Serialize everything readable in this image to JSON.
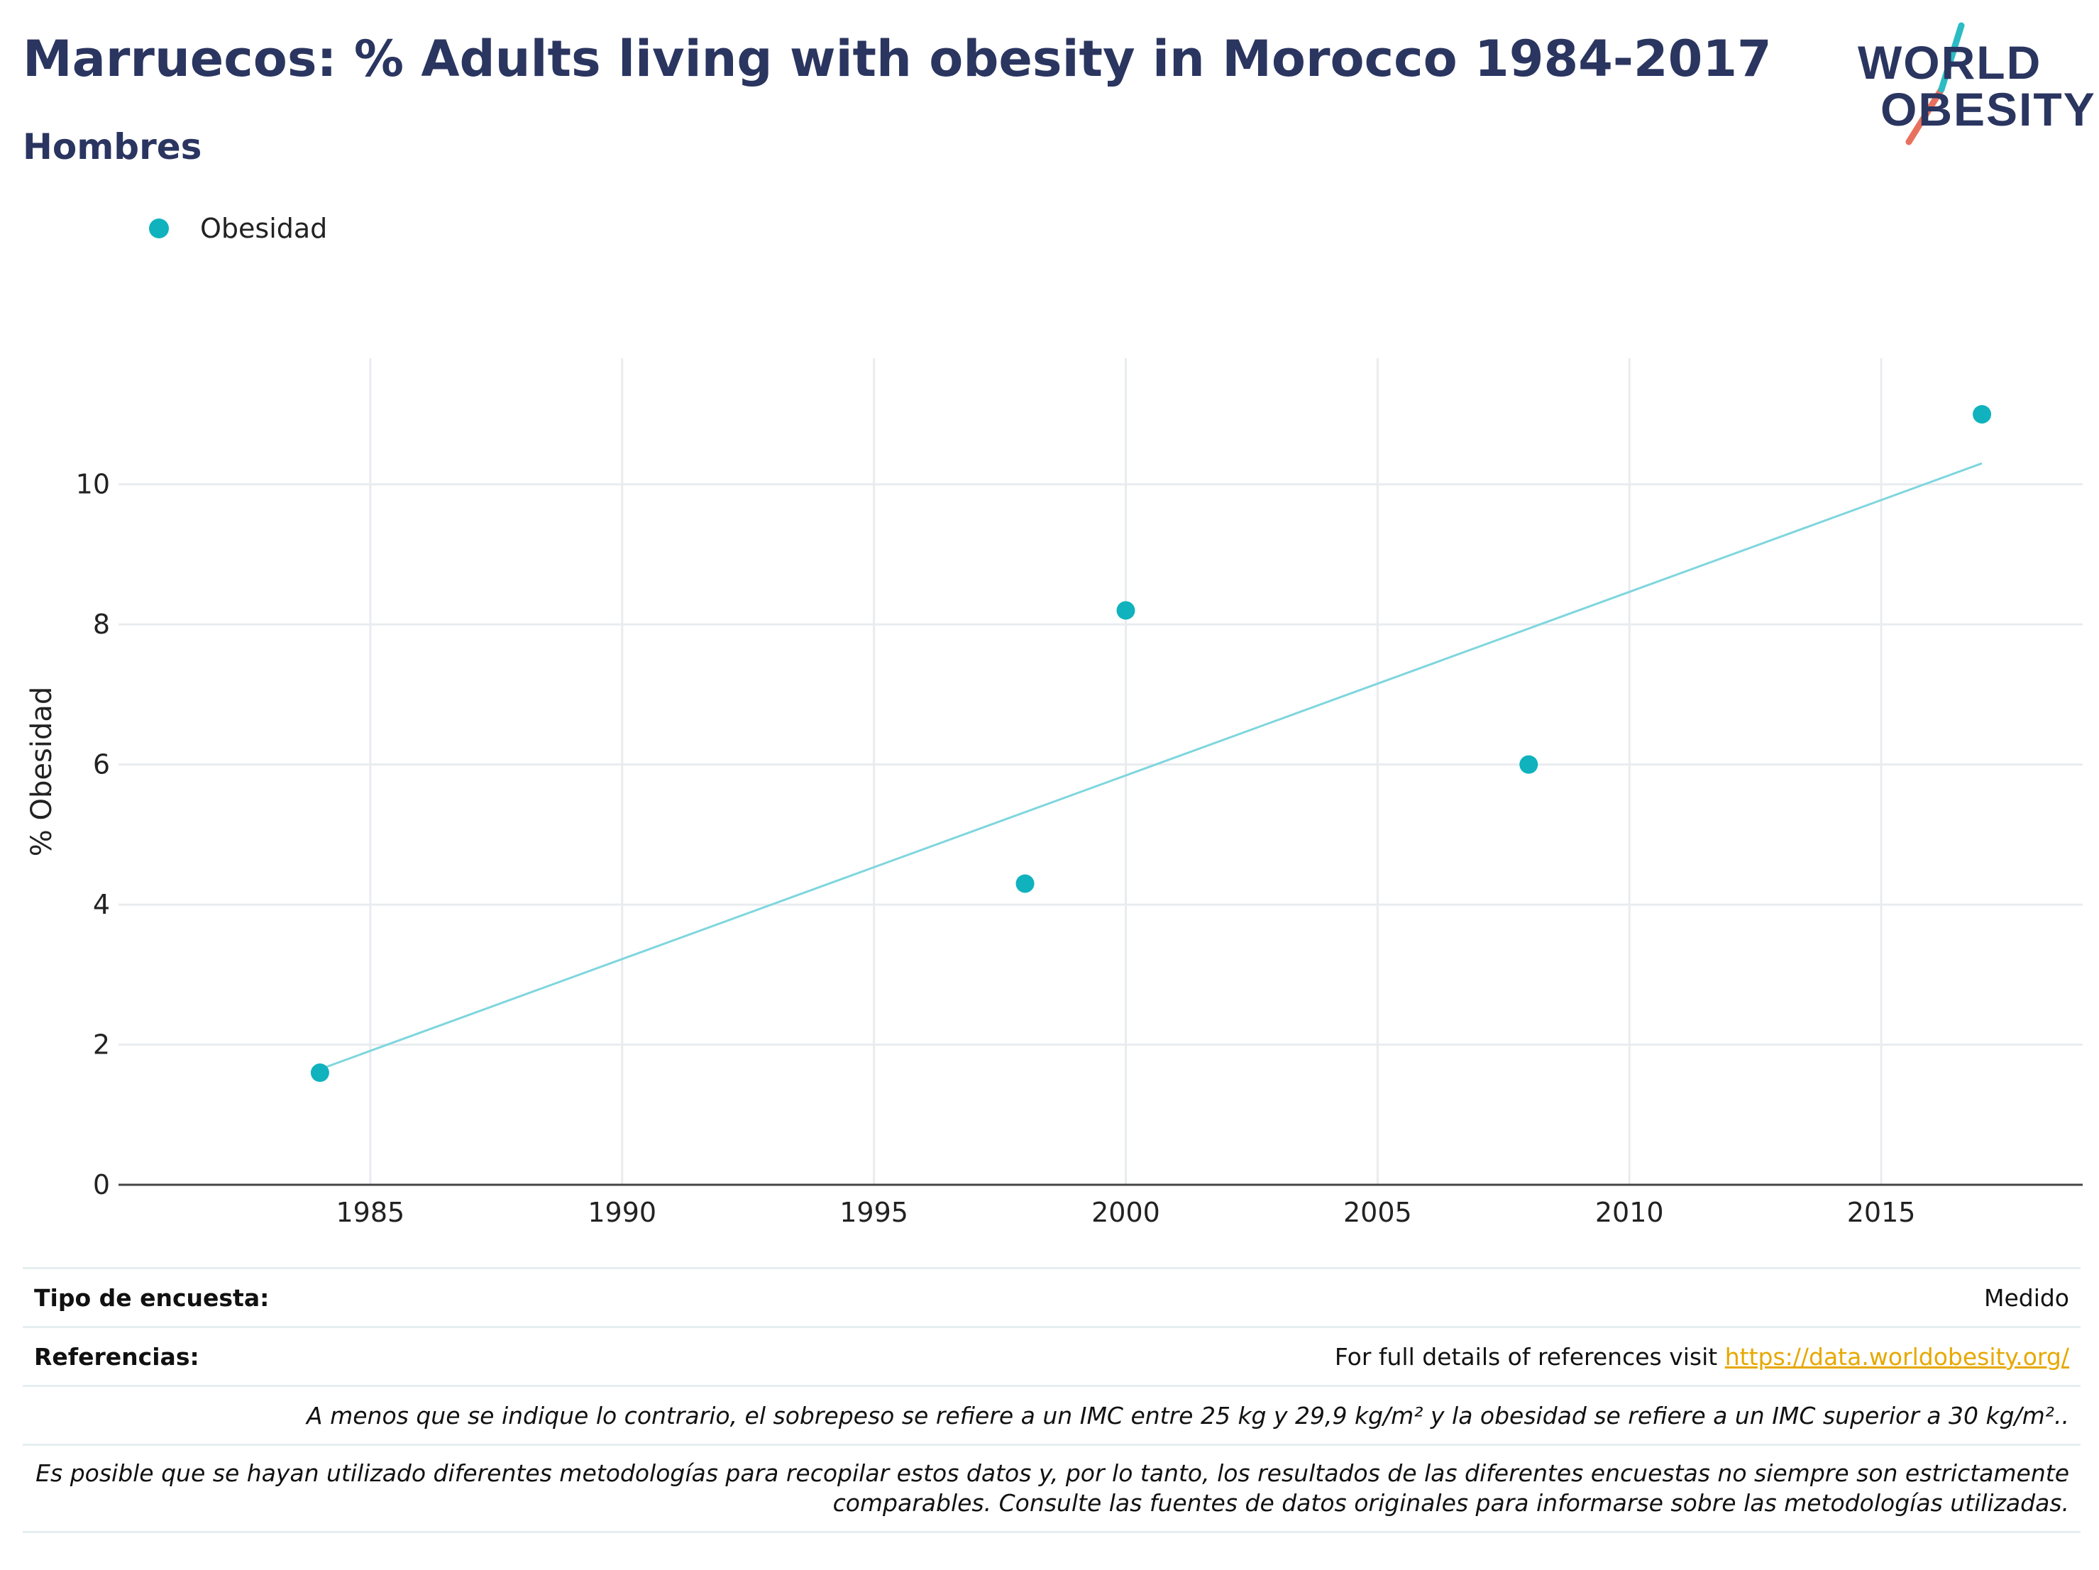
{
  "header": {
    "title": "Marruecos: % Adults living with obesity in Morocco 1984-2017",
    "subtitle": "Hombres"
  },
  "logo": {
    "line1": "WORLD",
    "line2": "OBESITY",
    "colors": {
      "navy": "#2a3560",
      "teal": "#2bbcc4",
      "coral": "#e8705e"
    }
  },
  "legend": {
    "items": [
      {
        "label": "Obesidad",
        "color": "#0fb2bd"
      }
    ]
  },
  "chart_data": {
    "type": "scatter",
    "title": "Marruecos: % Adults living with obesity in Morocco 1984-2017",
    "subtitle": "Hombres",
    "xlabel": "",
    "ylabel": "% Obesidad",
    "xlim": [
      1980,
      2019
    ],
    "ylim": [
      0,
      11.8
    ],
    "x_ticks": [
      1985,
      1990,
      1995,
      2000,
      2005,
      2010,
      2015
    ],
    "y_ticks": [
      0,
      2,
      4,
      6,
      8,
      10
    ],
    "grid": true,
    "legend_position": "top-left",
    "series": [
      {
        "name": "Obesidad",
        "color": "#0fb2bd",
        "points": [
          {
            "x": 1984,
            "y": 1.6
          },
          {
            "x": 1998,
            "y": 4.3
          },
          {
            "x": 2000,
            "y": 8.2
          },
          {
            "x": 2008,
            "y": 6.0
          },
          {
            "x": 2017,
            "y": 11.0
          }
        ]
      }
    ],
    "trendline": {
      "color": "#7fd6de",
      "x": [
        1984,
        2017
      ],
      "y": [
        1.65,
        10.3
      ]
    }
  },
  "footer": {
    "survey_type_label": "Tipo de encuesta:",
    "survey_type_value": "Medido",
    "references_label": "Referencias:",
    "references_text": "For full details of references visit ",
    "references_link": "https://data.worldobesity.org/",
    "note1": "A menos que se indique lo contrario, el sobrepeso se refiere a un IMC entre 25 kg y 29,9 kg/m² y la obesidad se refiere a un IMC superior a 30 kg/m²..",
    "note2_line1": "Es posible que se hayan utilizado diferentes metodologías para recopilar estos datos y, por lo tanto, los resultados de las diferentes encuestas no siempre son estrictamente",
    "note2_line2": "comparables. Consulte las fuentes de datos originales para informarse sobre las metodologías utilizadas."
  }
}
